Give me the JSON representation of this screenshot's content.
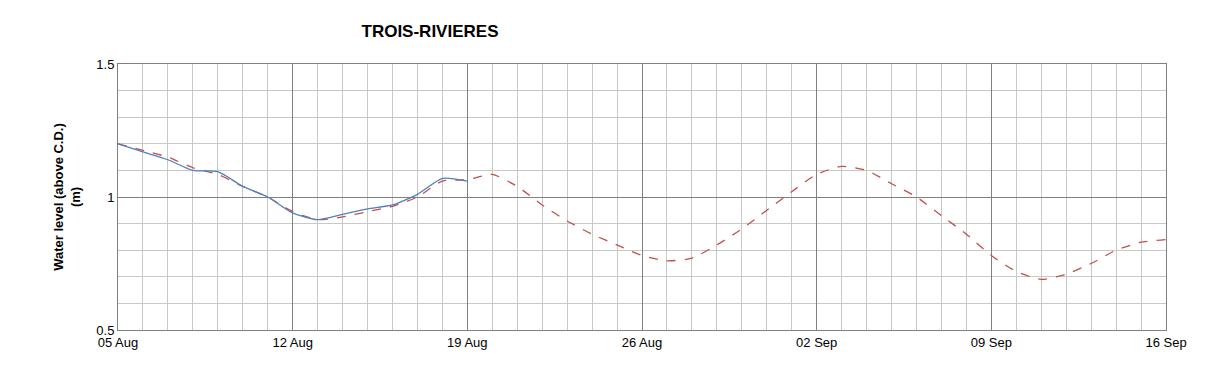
{
  "chart_data": {
    "type": "line",
    "title": "TROIS-RIVIERES",
    "y_label": "Water level (above C.D.)\n(m)",
    "categories": [
      "05 Aug",
      null,
      null,
      null,
      null,
      null,
      null,
      "12 Aug",
      null,
      null,
      null,
      null,
      null,
      null,
      "19 Aug",
      null,
      null,
      null,
      null,
      null,
      null,
      "26 Aug",
      null,
      null,
      null,
      null,
      null,
      null,
      "02 Sep",
      null,
      null,
      null,
      null,
      null,
      null,
      "09 Sep",
      null,
      null,
      null,
      null,
      null,
      null,
      "16 Sep"
    ],
    "series": [
      {
        "color": "#c0504d",
        "line_style": "dashed",
        "values": [
          1.2,
          1.175,
          1.15,
          1.11,
          1.085,
          1.04,
          1.0,
          0.945,
          0.915,
          0.925,
          0.945,
          0.965,
          1.0,
          1.06,
          1.065,
          1.085,
          1.04,
          0.97,
          0.91,
          0.86,
          0.82,
          0.78,
          0.76,
          0.77,
          0.82,
          0.88,
          0.95,
          1.02,
          1.085,
          1.115,
          1.1,
          1.05,
          1.0,
          0.93,
          0.86,
          0.78,
          0.72,
          0.69,
          0.71,
          0.75,
          0.8,
          0.83,
          0.84
        ]
      },
      {
        "color": "#4f81bd",
        "line_style": "solid",
        "values": [
          1.2,
          1.17,
          1.14,
          1.1,
          1.095,
          1.04,
          1.0,
          0.94,
          0.915,
          0.935,
          0.955,
          0.97,
          1.01,
          1.07,
          1.06,
          null,
          null,
          null,
          null,
          null,
          null,
          null,
          null,
          null,
          null,
          null,
          null,
          null,
          null,
          null,
          null,
          null,
          null,
          null,
          null,
          null,
          null,
          null,
          null,
          null,
          null,
          null,
          null
        ]
      }
    ],
    "ylim": [
      0.5,
      1.5
    ],
    "yticks": [
      0.5,
      1,
      1.5
    ],
    "grid": true
  }
}
